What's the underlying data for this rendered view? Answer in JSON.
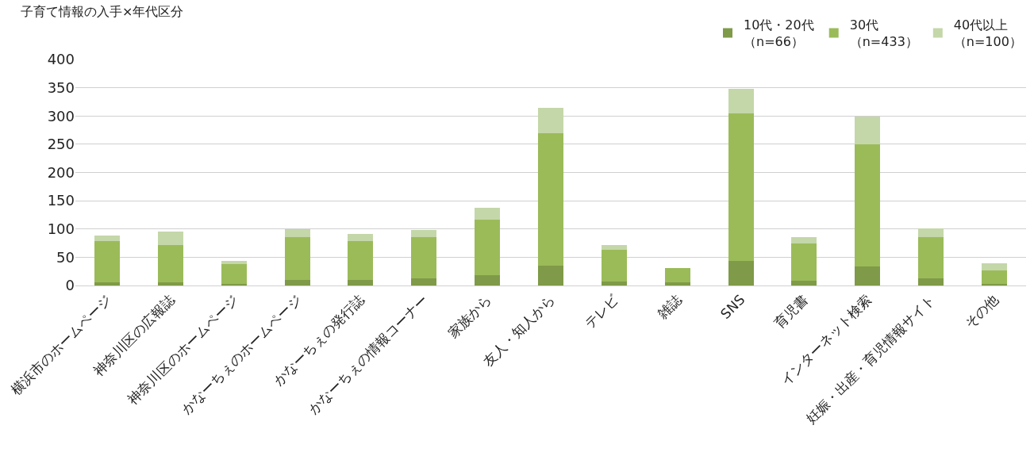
{
  "chart_data": {
    "type": "bar",
    "stacked": true,
    "title": "子育て情報の入手×年代区分",
    "categories": [
      "横浜市のホームページ",
      "神奈川区の広報誌",
      "神奈川区のホームページ",
      "かなーちぇのホームページ",
      "かなーちぇの発行誌",
      "かなーちぇの情報コーナー",
      "家族から",
      "友人・知人から",
      "テレビ",
      "雑誌",
      "SNS",
      "育児書",
      "インターネット検索",
      "妊娠・出産・育児情報サイト",
      "その他"
    ],
    "series": [
      {
        "name": "10代・20代（n=66）",
        "color": "#7f9a48",
        "values": [
          5,
          5,
          3,
          10,
          10,
          12,
          18,
          35,
          7,
          5,
          44,
          8,
          34,
          12,
          3
        ]
      },
      {
        "name": "30代（n=433）",
        "color": "#9bbb59",
        "values": [
          74,
          67,
          35,
          75,
          69,
          74,
          99,
          234,
          56,
          26,
          261,
          67,
          216,
          74,
          24
        ]
      },
      {
        "name": "40代以上（n=100）",
        "color": "#c4d7a9",
        "values": [
          10,
          23,
          6,
          15,
          12,
          12,
          20,
          45,
          9,
          0,
          43,
          11,
          49,
          15,
          12
        ]
      }
    ],
    "ylim": [
      0,
      400
    ],
    "yticks": [
      0,
      50,
      100,
      150,
      200,
      250,
      300,
      350,
      400
    ],
    "grid": "y",
    "legend": "top right"
  }
}
